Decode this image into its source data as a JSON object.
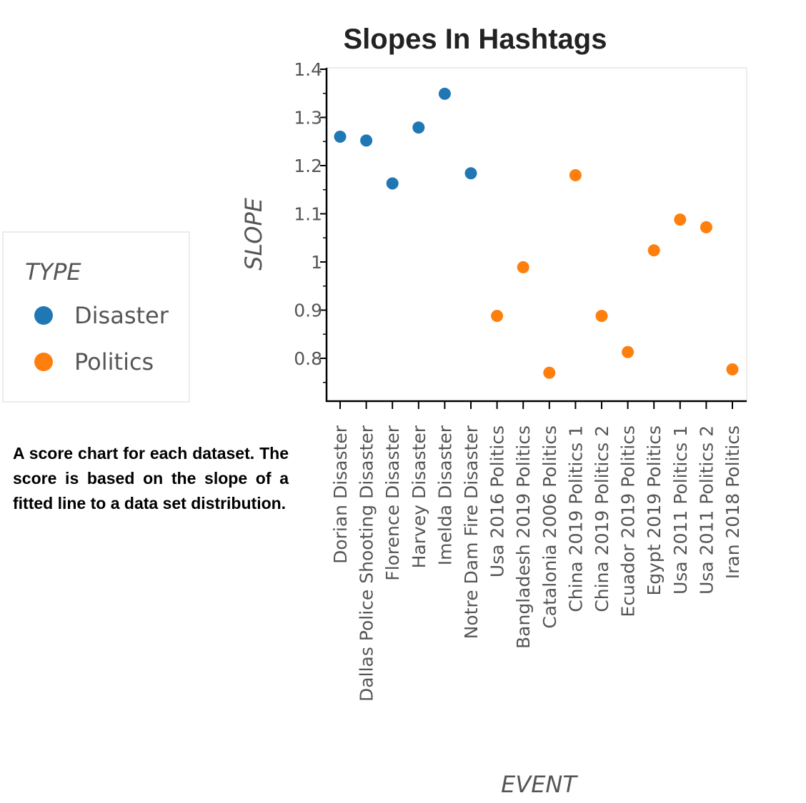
{
  "chart_data": {
    "type": "scatter",
    "title": "Slopes In Hashtags",
    "xlabel": "EVENT",
    "ylabel": "SLOPE",
    "ylim": [
      0.71,
      1.4
    ],
    "yticks": [
      0.8,
      0.9,
      1,
      1.1,
      1.2,
      1.3,
      1.4
    ],
    "ytick_labels": [
      "0.8",
      "0.9",
      "1",
      "1.1",
      "1.2",
      "1.3",
      "1.4"
    ],
    "categories": [
      "Dorian Disaster",
      "Dallas Police Shooting Disaster",
      "Florence Disaster",
      "Harvey Disaster",
      "Imelda Disaster",
      "Notre Dam Fire Disaster",
      "Usa 2016 Politics",
      "Bangladesh 2019 Politics",
      "Catalonia 2006 Politics",
      "China 2019 Politics 1",
      "China 2019 Politics 2",
      "Ecuador 2019 Politics",
      "Egypt 2019 Politics",
      "Usa 2011 Politics 1",
      "Usa 2011 Politics 2",
      "Iran 2018 Politics"
    ],
    "series": [
      {
        "name": "Disaster",
        "color": "#1f77b4",
        "points": [
          {
            "x": "Dorian Disaster",
            "y": 1.26
          },
          {
            "x": "Dallas Police Shooting Disaster",
            "y": 1.252
          },
          {
            "x": "Florence Disaster",
            "y": 1.163
          },
          {
            "x": "Harvey Disaster",
            "y": 1.279
          },
          {
            "x": "Imelda Disaster",
            "y": 1.349
          },
          {
            "x": "Notre Dam Fire Disaster",
            "y": 1.184
          }
        ]
      },
      {
        "name": "Politics",
        "color": "#ff7f0e",
        "points": [
          {
            "x": "Usa 2016 Politics",
            "y": 0.888
          },
          {
            "x": "Bangladesh 2019 Politics",
            "y": 0.989
          },
          {
            "x": "Catalonia 2006 Politics",
            "y": 0.77
          },
          {
            "x": "China 2019 Politics 1",
            "y": 1.18
          },
          {
            "x": "China 2019 Politics 2",
            "y": 0.888
          },
          {
            "x": "Ecuador 2019 Politics",
            "y": 0.813
          },
          {
            "x": "Egypt 2019 Politics",
            "y": 1.024
          },
          {
            "x": "Usa 2011 Politics 1",
            "y": 1.088
          },
          {
            "x": "Usa 2011 Politics 2",
            "y": 1.072
          },
          {
            "x": "Iran 2018 Politics",
            "y": 0.777
          }
        ]
      }
    ],
    "legend": {
      "title": "TYPE",
      "position": "left"
    }
  },
  "caption": "A score chart for each dataset. The score is based on the slope of a fitted line to a data set distribution."
}
